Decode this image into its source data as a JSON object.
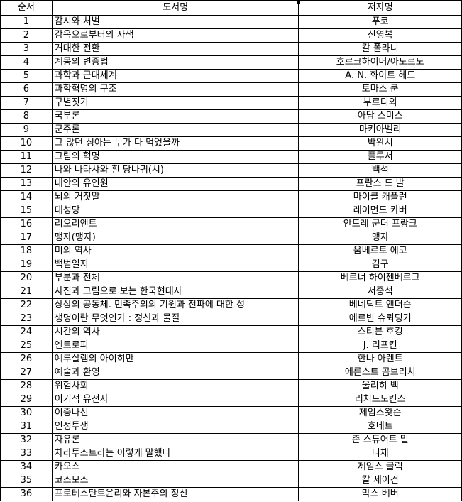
{
  "headers": {
    "num": "순서",
    "title": "도서명",
    "author": "저자명"
  },
  "rows": [
    {
      "num": "1",
      "title": "감시와 처벌",
      "author": "푸코"
    },
    {
      "num": "2",
      "title": "감옥으로부터의 사색",
      "author": "신영복"
    },
    {
      "num": "3",
      "title": "거대한 전환",
      "author": "칼 폴라니"
    },
    {
      "num": "4",
      "title": "계몽의 변증법",
      "author": "호르크하이머/아도르노"
    },
    {
      "num": "5",
      "title": "과학과 근대세계",
      "author": "A. N. 화이트 헤드"
    },
    {
      "num": "6",
      "title": "과학혁명의 구조",
      "author": "토마스 쿤"
    },
    {
      "num": "7",
      "title": "구별짓기",
      "author": "부르디외"
    },
    {
      "num": "8",
      "title": "국부론",
      "author": "아담 스미스"
    },
    {
      "num": "9",
      "title": "군주론",
      "author": "마키아벨리"
    },
    {
      "num": "10",
      "title": "그 많던 싱아는 누가 다 먹었을까",
      "author": "박완서"
    },
    {
      "num": "11",
      "title": "그림의 혁명",
      "author": "플루서"
    },
    {
      "num": "12",
      "title": "나와 나타샤와 흰 당나귀(시)",
      "author": "백석"
    },
    {
      "num": "13",
      "title": "내안의 유인원",
      "author": "프란스 드 발"
    },
    {
      "num": "14",
      "title": "뇌의 거짓말",
      "author": "마이클 캐플런"
    },
    {
      "num": "15",
      "title": "대성당",
      "author": "레이먼드 카버"
    },
    {
      "num": "16",
      "title": "리오리엔트",
      "author": "안드레 군더 프랑크"
    },
    {
      "num": "17",
      "title": "맹자(맹자)",
      "author": "맹자"
    },
    {
      "num": "18",
      "title": "미의 역사",
      "author": "움베르토 에코"
    },
    {
      "num": "19",
      "title": "백범일지",
      "author": "김구"
    },
    {
      "num": "20",
      "title": "부분과 전체",
      "author": "베르너 하이젠베르그"
    },
    {
      "num": "21",
      "title": "사진과 그림으로 보는 한국현대사",
      "author": "서중석"
    },
    {
      "num": "22",
      "title": "상상의 공동체. 민족주의의 기원과 전파에 대한 성",
      "author": "베네딕트 앤더슨"
    },
    {
      "num": "23",
      "title": "생명이란 무엇인가 : 정신과 물질",
      "author": "에르빈 슈뢰딩거"
    },
    {
      "num": "24",
      "title": "시간의 역사",
      "author": "스티븐 호킹"
    },
    {
      "num": "25",
      "title": "엔트로피",
      "author": "J. 리프킨"
    },
    {
      "num": "26",
      "title": "예루살렘의 아이히만",
      "author": "한나 아렌트"
    },
    {
      "num": "27",
      "title": "예술과 환영",
      "author": "에른스트 곰브리치"
    },
    {
      "num": "28",
      "title": "위험사회",
      "author": "울리히 벡"
    },
    {
      "num": "29",
      "title": "이기적 유전자",
      "author": "리처드도킨스"
    },
    {
      "num": "30",
      "title": "이중나선",
      "author": "제임스왓슨"
    },
    {
      "num": "31",
      "title": "인정투쟁",
      "author": "호네트"
    },
    {
      "num": "32",
      "title": "자유론",
      "author": "존 스튜어트 밀"
    },
    {
      "num": "33",
      "title": "차라투스트라는 이렇게 말했다",
      "author": "니체"
    },
    {
      "num": "34",
      "title": "카오스",
      "author": "제임스 글릭"
    },
    {
      "num": "35",
      "title": "코스모스",
      "author": "칼 세이건"
    },
    {
      "num": "36",
      "title": "프로테스탄트윤리와 자본주의 정신",
      "author": "막스 베버"
    }
  ]
}
